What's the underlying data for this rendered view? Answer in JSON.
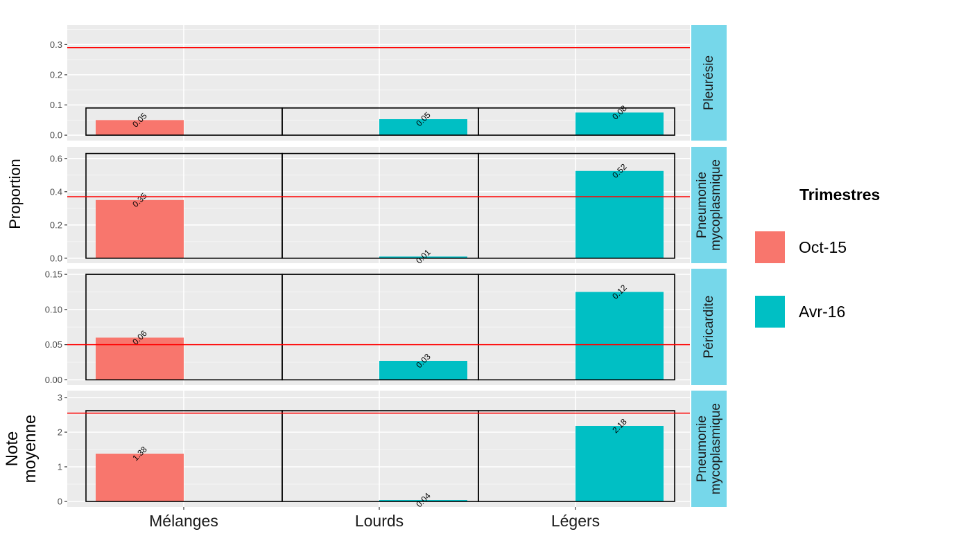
{
  "chart_data": {
    "type": "bar",
    "categories": [
      "Mélanges",
      "Lourds",
      "Légers"
    ],
    "legend": {
      "title": "Trimestres",
      "position": "right",
      "entries": [
        {
          "name": "Oct-15",
          "color": "#F8766D"
        },
        {
          "name": "Avr-16",
          "color": "#00BFC4"
        }
      ]
    },
    "ylabels": [
      "Proportion",
      "Note moyenne"
    ],
    "grid": true,
    "panels": [
      {
        "strip": [
          "Pleurésie"
        ],
        "ylim": [
          -0.018,
          0.365
        ],
        "yticks": [
          0.0,
          0.1,
          0.2,
          0.3
        ],
        "ytick_labels": [
          "0.0",
          "0.1",
          "0.2",
          "0.3"
        ],
        "reference_line": 0.29,
        "box_top": 0.09,
        "bars": [
          {
            "category": "Mélanges",
            "series": "Oct-15",
            "value": 0.05,
            "label": "0.05"
          },
          {
            "category": "Lourds",
            "series": "Avr-16",
            "value": 0.053,
            "label": "0.05"
          },
          {
            "category": "Légers",
            "series": "Avr-16",
            "value": 0.075,
            "label": "0.08"
          }
        ]
      },
      {
        "strip": [
          "Pneumonie",
          "mycoplasmique"
        ],
        "ylim": [
          -0.03,
          0.67
        ],
        "yticks": [
          0.0,
          0.2,
          0.4,
          0.6
        ],
        "ytick_labels": [
          "0.0",
          "0.2",
          "0.4",
          "0.6"
        ],
        "reference_line": 0.37,
        "box_top": 0.63,
        "bars": [
          {
            "category": "Mélanges",
            "series": "Oct-15",
            "value": 0.35,
            "label": "0.35"
          },
          {
            "category": "Lourds",
            "series": "Avr-16",
            "value": 0.01,
            "label": "0.01"
          },
          {
            "category": "Légers",
            "series": "Avr-16",
            "value": 0.525,
            "label": "0.52"
          }
        ]
      },
      {
        "strip": [
          "Péricardite"
        ],
        "ylim": [
          -0.0075,
          0.158
        ],
        "yticks": [
          0.0,
          0.05,
          0.1,
          0.15
        ],
        "ytick_labels": [
          "0.00",
          "0.05",
          "0.10",
          "0.15"
        ],
        "reference_line": 0.05,
        "box_top": 0.15,
        "bars": [
          {
            "category": "Mélanges",
            "series": "Oct-15",
            "value": 0.06,
            "label": "0.06"
          },
          {
            "category": "Lourds",
            "series": "Avr-16",
            "value": 0.027,
            "label": "0.03"
          },
          {
            "category": "Légers",
            "series": "Avr-16",
            "value": 0.125,
            "label": "0.12"
          }
        ]
      },
      {
        "strip": [
          "Pneumonie",
          "mycoplasmique"
        ],
        "ylim": [
          -0.16,
          3.2
        ],
        "yticks": [
          0,
          1,
          2,
          3
        ],
        "ytick_labels": [
          "0",
          "1",
          "2",
          "3"
        ],
        "reference_line": 2.55,
        "box_top": 2.62,
        "bars": [
          {
            "category": "Mélanges",
            "series": "Oct-15",
            "value": 1.38,
            "label": "1.38"
          },
          {
            "category": "Lourds",
            "series": "Avr-16",
            "value": 0.04,
            "label": "0.04"
          },
          {
            "category": "Légers",
            "series": "Avr-16",
            "value": 2.18,
            "label": "2.18"
          }
        ]
      }
    ]
  }
}
